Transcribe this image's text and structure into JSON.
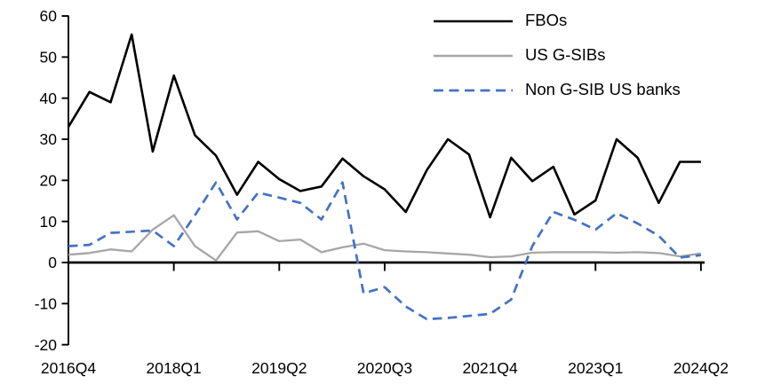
{
  "page": {
    "background": "#ffffff"
  },
  "legend": {
    "position": "top-right",
    "items": [
      {
        "id": "fbos",
        "label": "FBOs",
        "color": "#000000",
        "style": "solid"
      },
      {
        "id": "us-gsibs",
        "label": "US G-SIBs",
        "color": "#a6a6a6",
        "style": "solid"
      },
      {
        "id": "non-gsib-us-banks",
        "label": "Non G-SIB US banks",
        "color": "#4472c4",
        "style": "dashed"
      }
    ]
  },
  "axes": {
    "y_tick_labels": [
      "60",
      "50",
      "40",
      "30",
      "20",
      "10",
      "0",
      "-10",
      "-20"
    ],
    "x_tick_labels": [
      "2016Q4",
      "2018Q1",
      "2019Q2",
      "2020Q3",
      "2021Q4",
      "2023Q1",
      "2024Q2"
    ]
  },
  "chart_data": {
    "type": "line",
    "title": "",
    "xlabel": "",
    "ylabel": "",
    "ylim": [
      -20,
      60
    ],
    "y_ticks": [
      60,
      50,
      40,
      30,
      20,
      10,
      0,
      -10,
      -20
    ],
    "grid": false,
    "legend_position": "top-right",
    "x_categories": [
      "2016Q4",
      "2017Q1",
      "2017Q2",
      "2017Q3",
      "2017Q4",
      "2018Q1",
      "2018Q2",
      "2018Q3",
      "2018Q4",
      "2019Q1",
      "2019Q2",
      "2019Q3",
      "2019Q4",
      "2020Q1",
      "2020Q2",
      "2020Q3",
      "2020Q4",
      "2021Q1",
      "2021Q2",
      "2021Q3",
      "2021Q4",
      "2022Q1",
      "2022Q2",
      "2022Q3",
      "2022Q4",
      "2023Q1",
      "2023Q2",
      "2023Q3",
      "2023Q4",
      "2024Q1",
      "2024Q2"
    ],
    "x_ticks": [
      {
        "label": "2016Q4",
        "index": 0
      },
      {
        "label": "2018Q1",
        "index": 5
      },
      {
        "label": "2019Q2",
        "index": 10
      },
      {
        "label": "2020Q3",
        "index": 15
      },
      {
        "label": "2021Q4",
        "index": 20
      },
      {
        "label": "2023Q1",
        "index": 25
      },
      {
        "label": "2024Q2",
        "index": 30
      }
    ],
    "series": [
      {
        "name": "FBOs",
        "color": "#000000",
        "dash": "solid",
        "values": [
          33,
          41.5,
          39,
          55.5,
          27,
          45.5,
          31,
          26,
          16.5,
          24.5,
          20.3,
          17.4,
          18.5,
          25.3,
          21,
          17.8,
          12.3,
          22.5,
          30,
          26.3,
          11,
          25.5,
          19.8,
          23.3,
          11.7,
          15.1,
          30,
          25.5,
          14.5,
          24.5,
          24.5
        ]
      },
      {
        "name": "US G-SIBs",
        "color": "#a6a6a6",
        "dash": "solid",
        "values": [
          1.9,
          2.3,
          3.2,
          2.7,
          8,
          11.5,
          4,
          0.5,
          7.3,
          7.6,
          5.2,
          5.6,
          2.5,
          3.7,
          4.6,
          3,
          2.7,
          2.5,
          2.2,
          1.9,
          1.3,
          1.5,
          2.4,
          2.5,
          2.5,
          2.5,
          2.4,
          2.5,
          2.3,
          1.5,
          2.2
        ]
      },
      {
        "name": "Non G-SIB US banks",
        "color": "#4472c4",
        "dash": "dashed",
        "values": [
          4,
          4.3,
          7.2,
          7.5,
          7.8,
          4,
          11.5,
          19.5,
          10.5,
          17,
          15.8,
          14.5,
          10.5,
          19.5,
          -7.5,
          -6,
          -10.7,
          -13.8,
          -13.5,
          -13,
          -12.5,
          -9,
          4,
          12.3,
          10.4,
          8,
          12,
          9.5,
          6.5,
          1.2,
          1.8
        ]
      }
    ]
  }
}
